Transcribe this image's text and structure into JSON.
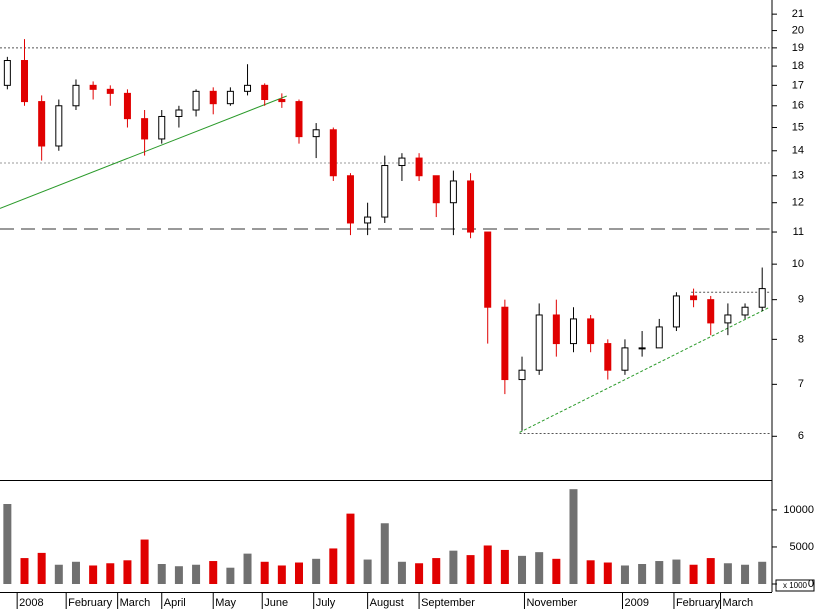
{
  "chart_data": {
    "type": "candlestick",
    "log_scale": true,
    "up_color": "#000000",
    "down_color": "#e00000",
    "volume_up_color": "#707070",
    "volume_down_color": "#e00000",
    "x": [
      3,
      10,
      17,
      24,
      31,
      38,
      45,
      52,
      59,
      66,
      73,
      80,
      87,
      94,
      101,
      108,
      115,
      122,
      129,
      136,
      143,
      150,
      157,
      164,
      171,
      178,
      185,
      192,
      199,
      206,
      213,
      220,
      227,
      234,
      241,
      248,
      255,
      262,
      269,
      276,
      283,
      290,
      297,
      304,
      311
    ],
    "open": [
      17,
      18.3,
      16.2,
      14.2,
      16,
      17,
      16.8,
      16.6,
      15.4,
      14.5,
      15.5,
      15.8,
      16.7,
      16.1,
      16.7,
      17,
      16.3,
      16.2,
      14.6,
      14.9,
      13,
      11.3,
      11.5,
      13.4,
      13.7,
      13,
      12,
      12.8,
      11,
      8.8,
      7.1,
      7.3,
      8.6,
      7.9,
      8.5,
      7.9,
      7.3,
      7.8,
      7.8,
      8.3,
      9.1,
      9,
      8.4,
      8.6,
      8.8
    ],
    "high": [
      18.5,
      19.5,
      16.5,
      16.3,
      17.3,
      17.2,
      17,
      16.8,
      15.8,
      15.8,
      16,
      16.8,
      16.9,
      16.9,
      18.1,
      17.1,
      16.6,
      16.3,
      15.2,
      15,
      13.1,
      12,
      13.8,
      13.9,
      13.9,
      13,
      13.2,
      13.1,
      11,
      9,
      7.6,
      8.9,
      9,
      8.8,
      8.6,
      8,
      8,
      8.2,
      8.5,
      9.2,
      9.3,
      9.1,
      8.9,
      8.9,
      9.9
    ],
    "low": [
      16.8,
      16,
      13.6,
      14,
      15.8,
      16.3,
      16,
      15,
      13.8,
      14.3,
      15,
      15.5,
      15.6,
      16,
      16.5,
      16,
      15.9,
      14.3,
      13.7,
      12.8,
      10.9,
      10.9,
      11.3,
      12.8,
      12.8,
      11.5,
      10.9,
      10.8,
      7.9,
      6.8,
      6.1,
      7.2,
      7.6,
      7.7,
      7.7,
      7.1,
      7.2,
      7.6,
      7.8,
      8.2,
      8.8,
      8.1,
      8.1,
      8.5,
      8.7
    ],
    "close": [
      18.3,
      16.2,
      14.2,
      16,
      17,
      16.8,
      16.6,
      15.4,
      14.5,
      15.5,
      15.8,
      16.7,
      16.1,
      16.7,
      17,
      16.3,
      16.2,
      14.6,
      14.9,
      13,
      11.3,
      11.5,
      13.4,
      13.7,
      13,
      12,
      12.8,
      11,
      8.8,
      7.1,
      7.3,
      8.6,
      7.9,
      8.5,
      7.9,
      7.3,
      7.8,
      7.8,
      8.3,
      9.1,
      9,
      8.4,
      8.6,
      8.8,
      9.3
    ],
    "volume": [
      10800,
      3500,
      4200,
      2600,
      3000,
      2500,
      2800,
      3200,
      6000,
      2700,
      2400,
      2600,
      3100,
      2200,
      4100,
      3000,
      2500,
      2900,
      3400,
      4800,
      9500,
      3300,
      8200,
      3000,
      2800,
      3500,
      4500,
      3900,
      5200,
      4600,
      3800,
      4300,
      3400,
      12800,
      3200,
      2900,
      2500,
      2700,
      3100,
      3300,
      2600,
      3500,
      2800,
      2600,
      3000
    ],
    "xlim": [
      0,
      315
    ],
    "xticks": [
      {
        "value": 7,
        "label": "2008"
      },
      {
        "value": 27,
        "label": "February"
      },
      {
        "value": 48,
        "label": "March"
      },
      {
        "value": 66,
        "label": "April"
      },
      {
        "value": 87,
        "label": "May"
      },
      {
        "value": 107,
        "label": "June"
      },
      {
        "value": 128,
        "label": "July"
      },
      {
        "value": 150,
        "label": "August"
      },
      {
        "value": 171,
        "label": "September"
      },
      {
        "value": 214,
        "label": "November"
      },
      {
        "value": 254,
        "label": "2009"
      },
      {
        "value": 275,
        "label": "February"
      },
      {
        "value": 294,
        "label": "March"
      }
    ],
    "ylim": [
      5.27,
      21.9
    ],
    "yticks": [
      6,
      7,
      8,
      9,
      10,
      11,
      12,
      13,
      14,
      15,
      16,
      17,
      18,
      19,
      20,
      21
    ],
    "volume_ylim": [
      0,
      13500
    ],
    "volume_yticks": [
      0,
      5000,
      10000
    ],
    "volume_unit_label": "x 1000",
    "lines": [
      {
        "x": [
          0,
          314
        ],
        "y": [
          19,
          19
        ],
        "color": "#555555",
        "dash": "2,2"
      },
      {
        "x": [
          0,
          314
        ],
        "y": [
          13.5,
          13.5
        ],
        "color": "#999999",
        "dash": "2,2"
      },
      {
        "x": [
          0,
          314
        ],
        "y": [
          11.1,
          11.1
        ],
        "color": "#333333",
        "dash": "14,7"
      },
      {
        "x": [
          212,
          314
        ],
        "y": [
          6.05,
          6.05
        ],
        "color": "#555555",
        "dash": "2,2"
      },
      {
        "x": [
          282,
          314
        ],
        "y": [
          9.2,
          9.2
        ],
        "color": "#555555",
        "dash": "2,2"
      },
      {
        "x": [
          0,
          117
        ],
        "y": [
          11.8,
          16.47
        ],
        "color": "#2a9a2a",
        "dash": ""
      },
      {
        "x": [
          212,
          314
        ],
        "y": [
          6.07,
          8.8
        ],
        "color": "#2a9a2a",
        "dash": "3,2"
      }
    ]
  }
}
